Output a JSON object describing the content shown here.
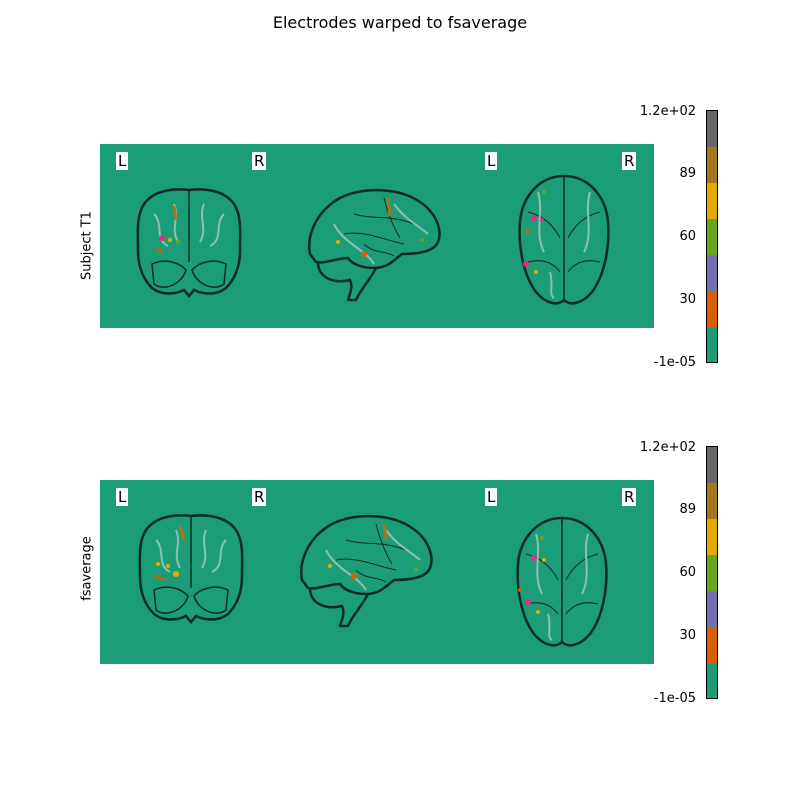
{
  "figure": {
    "title": "Electrodes warped to fsaverage"
  },
  "panels": [
    {
      "ylabel": "Subject T1",
      "side_labels": [
        "L",
        "R",
        "L",
        "R"
      ],
      "views": [
        "coronal",
        "sagittal",
        "axial"
      ]
    },
    {
      "ylabel": "fsaverage",
      "side_labels": [
        "L",
        "R",
        "L",
        "R"
      ],
      "views": [
        "coronal",
        "sagittal",
        "axial"
      ]
    }
  ],
  "colorbar": {
    "tick_labels": [
      "1.2e+02",
      "89",
      "60",
      "30",
      "-1e-05"
    ],
    "colors": [
      "#666666",
      "#a6761d",
      "#e6ab02",
      "#66a61e",
      "#7570b3",
      "#d95f02",
      "#1b9e77"
    ]
  },
  "colors": {
    "background": "#1b9e77",
    "brain_outline": "#0d2b22",
    "sulci": "#8fbfae"
  }
}
